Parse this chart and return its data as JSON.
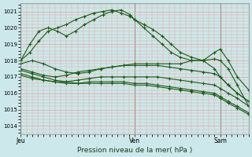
{
  "xlabel": "Pression niveau de la mer( hPa )",
  "bg_color": "#cce8ea",
  "grid_color_major": "#e8a0a0",
  "grid_color_minor": "#e8a0a0",
  "line_color": "#1a5c1a",
  "ylim": [
    1013.5,
    1021.5
  ],
  "yticks": [
    1014,
    1015,
    1016,
    1017,
    1018,
    1019,
    1020,
    1021
  ],
  "day_labels": [
    "Jeu",
    "Ven",
    "Sam"
  ],
  "day_positions": [
    0.0,
    0.5,
    0.875
  ],
  "xlim": [
    0.0,
    1.0
  ],
  "series": [
    {
      "x": [
        0.0,
        0.04,
        0.08,
        0.12,
        0.16,
        0.2,
        0.24,
        0.28,
        0.32,
        0.36,
        0.4,
        0.44,
        0.48,
        0.5,
        0.54,
        0.58,
        0.62,
        0.66,
        0.7,
        0.75,
        0.8,
        0.85,
        0.875,
        0.91,
        0.95,
        1.0
      ],
      "y": [
        1018.0,
        1019.0,
        1019.8,
        1020.0,
        1019.8,
        1019.5,
        1019.8,
        1020.2,
        1020.5,
        1020.8,
        1021.0,
        1021.1,
        1020.8,
        1020.5,
        1020.0,
        1019.5,
        1019.0,
        1018.5,
        1018.2,
        1018.0,
        1018.0,
        1018.5,
        1018.7,
        1018.0,
        1017.0,
        1016.2
      ]
    },
    {
      "x": [
        0.0,
        0.04,
        0.08,
        0.12,
        0.16,
        0.2,
        0.24,
        0.28,
        0.32,
        0.36,
        0.4,
        0.44,
        0.48,
        0.5,
        0.54,
        0.58,
        0.62,
        0.66,
        0.7,
        0.75,
        0.8,
        0.85,
        0.875,
        0.91,
        0.95,
        1.0
      ],
      "y": [
        1018.0,
        1018.5,
        1019.2,
        1019.8,
        1020.0,
        1020.2,
        1020.5,
        1020.7,
        1020.9,
        1021.0,
        1021.1,
        1020.9,
        1020.7,
        1020.5,
        1020.2,
        1019.9,
        1019.5,
        1019.0,
        1018.5,
        1018.2,
        1018.0,
        1017.5,
        1017.0,
        1016.5,
        1016.0,
        1015.5
      ]
    },
    {
      "x": [
        0.0,
        0.05,
        0.1,
        0.15,
        0.2,
        0.25,
        0.3,
        0.35,
        0.4,
        0.45,
        0.5,
        0.55,
        0.6,
        0.65,
        0.7,
        0.75,
        0.8,
        0.85,
        0.875,
        0.91,
        0.95,
        1.0
      ],
      "y": [
        1017.8,
        1018.0,
        1017.8,
        1017.5,
        1017.3,
        1017.2,
        1017.3,
        1017.5,
        1017.6,
        1017.7,
        1017.8,
        1017.8,
        1017.8,
        1017.8,
        1017.8,
        1018.0,
        1018.0,
        1018.1,
        1018.0,
        1017.5,
        1016.5,
        1015.2
      ]
    },
    {
      "x": [
        0.0,
        0.05,
        0.1,
        0.15,
        0.2,
        0.25,
        0.3,
        0.35,
        0.4,
        0.45,
        0.5,
        0.55,
        0.6,
        0.65,
        0.7,
        0.75,
        0.8,
        0.85,
        0.875,
        0.91,
        0.95,
        1.0
      ],
      "y": [
        1017.5,
        1017.3,
        1017.1,
        1017.0,
        1017.1,
        1017.3,
        1017.4,
        1017.5,
        1017.6,
        1017.7,
        1017.7,
        1017.7,
        1017.7,
        1017.6,
        1017.5,
        1017.4,
        1017.3,
        1017.2,
        1017.0,
        1016.5,
        1016.0,
        1015.5
      ]
    },
    {
      "x": [
        0.0,
        0.05,
        0.1,
        0.15,
        0.2,
        0.25,
        0.3,
        0.35,
        0.4,
        0.45,
        0.5,
        0.55,
        0.6,
        0.65,
        0.7,
        0.75,
        0.8,
        0.85,
        0.875,
        0.91,
        0.95,
        1.0
      ],
      "y": [
        1017.2,
        1017.0,
        1016.8,
        1016.7,
        1016.7,
        1016.8,
        1016.9,
        1017.0,
        1017.0,
        1017.0,
        1017.0,
        1017.0,
        1017.0,
        1016.9,
        1016.8,
        1016.7,
        1016.6,
        1016.5,
        1016.3,
        1016.0,
        1015.7,
        1015.2
      ]
    },
    {
      "x": [
        0.0,
        0.05,
        0.1,
        0.15,
        0.2,
        0.25,
        0.3,
        0.35,
        0.4,
        0.45,
        0.5,
        0.55,
        0.6,
        0.65,
        0.7,
        0.75,
        0.8,
        0.85,
        0.875,
        0.91,
        0.95,
        1.0
      ],
      "y": [
        1017.1,
        1016.9,
        1016.8,
        1016.7,
        1016.6,
        1016.6,
        1016.7,
        1016.7,
        1016.7,
        1016.7,
        1016.6,
        1016.6,
        1016.5,
        1016.4,
        1016.3,
        1016.2,
        1016.1,
        1016.0,
        1015.8,
        1015.5,
        1015.2,
        1014.8
      ]
    },
    {
      "x": [
        0.0,
        0.05,
        0.1,
        0.15,
        0.2,
        0.25,
        0.3,
        0.35,
        0.4,
        0.45,
        0.5,
        0.55,
        0.6,
        0.65,
        0.7,
        0.75,
        0.8,
        0.85,
        0.875,
        0.91,
        0.95,
        1.0
      ],
      "y": [
        1017.4,
        1017.2,
        1017.0,
        1016.8,
        1016.7,
        1016.6,
        1016.6,
        1016.6,
        1016.6,
        1016.6,
        1016.5,
        1016.5,
        1016.4,
        1016.3,
        1016.2,
        1016.1,
        1016.0,
        1015.9,
        1015.7,
        1015.4,
        1015.1,
        1014.7
      ]
    }
  ]
}
